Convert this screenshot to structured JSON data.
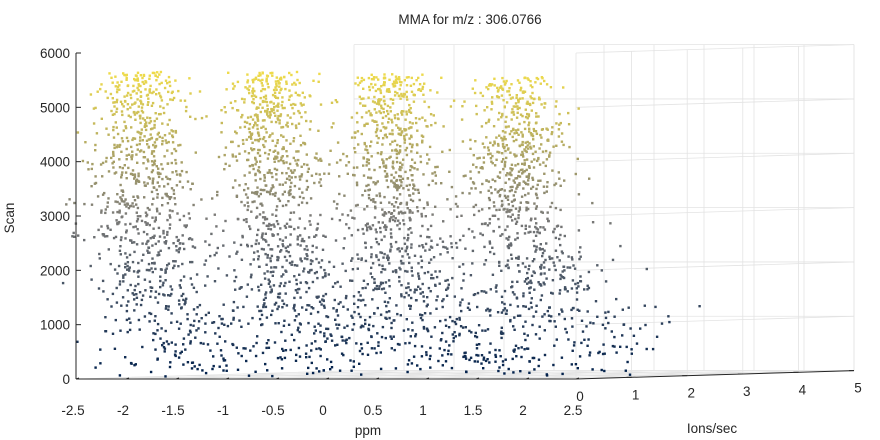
{
  "chart_data": {
    "type": "scatter",
    "title": "MMA for m/z : 306.0766",
    "xlabel": "ppm",
    "ylabel": "Ions/sec",
    "zlabel": "Scan",
    "xlim": [
      -2.5,
      2.5
    ],
    "ylim": [
      0,
      5
    ],
    "zlim": [
      0,
      6000
    ],
    "xticks": [
      "-2.5",
      "-2",
      "-1.5",
      "-1",
      "-0.5",
      "0",
      "0.5",
      "1",
      "1.5",
      "2",
      "2.5"
    ],
    "yticks": [
      "0",
      "1",
      "2",
      "3",
      "4",
      "5"
    ],
    "zticks": [
      "0",
      "1000",
      "2000",
      "3000",
      "4000",
      "5000",
      "6000"
    ],
    "grid": true,
    "projection": "3d",
    "colormap": [
      "#00204c",
      "#7c7b78",
      "#ffe945"
    ],
    "color_by": "Scan",
    "clusters": [
      {
        "ppm_center": -1.95,
        "scan_max": 5650,
        "points": 950
      },
      {
        "ppm_center": -0.65,
        "scan_max": 5650,
        "points": 950
      },
      {
        "ppm_center": 0.55,
        "scan_max": 5600,
        "points": 950
      },
      {
        "ppm_center": 1.8,
        "scan_max": 5550,
        "points": 900
      }
    ]
  }
}
